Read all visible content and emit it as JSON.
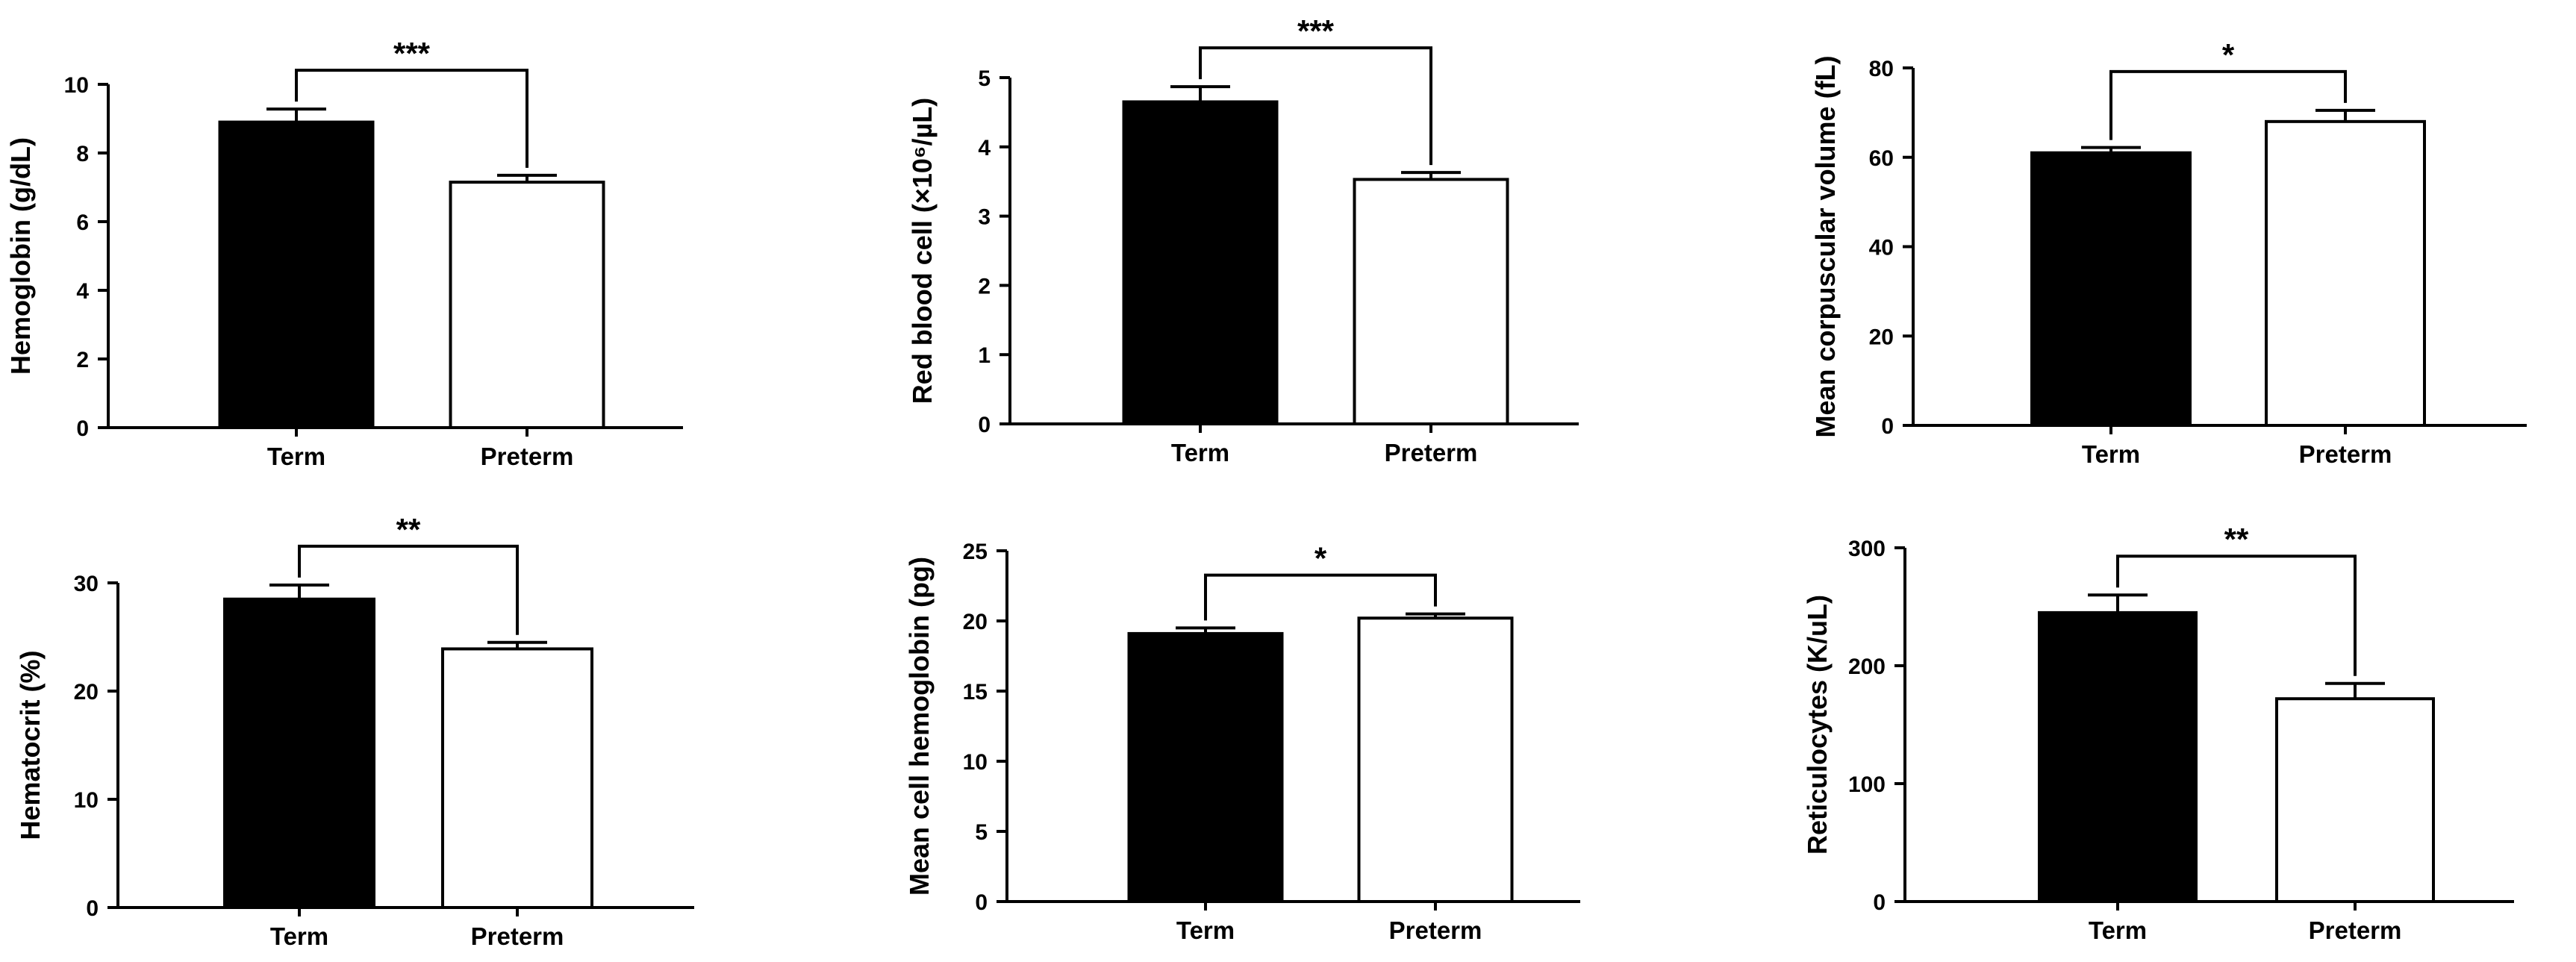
{
  "figure": {
    "colors": {
      "term": "#000000",
      "preterm": "#ffffff",
      "axis": "#000000"
    }
  },
  "chart_data": [
    {
      "type": "bar",
      "ylabel": "Hemoglobin (g/dL)",
      "categories": [
        "Term",
        "Preterm"
      ],
      "values": [
        8.9,
        7.15
      ],
      "errors": [
        0.38,
        0.2
      ],
      "ylim": [
        0,
        10
      ],
      "yticks": [
        0,
        2,
        4,
        6,
        8,
        10
      ],
      "significance": "***",
      "grid": false
    },
    {
      "type": "bar",
      "ylabel": "Red blood cell (×10⁶/µL)",
      "categories": [
        "Term",
        "Preterm"
      ],
      "values": [
        4.65,
        3.53
      ],
      "errors": [
        0.22,
        0.1
      ],
      "ylim": [
        0,
        5
      ],
      "yticks": [
        0,
        1,
        2,
        3,
        4,
        5
      ],
      "significance": "***",
      "grid": false
    },
    {
      "type": "bar",
      "ylabel": "Mean corpuscular volume (fL)",
      "categories": [
        "Term",
        "Preterm"
      ],
      "values": [
        61,
        68
      ],
      "errors": [
        1.2,
        2.5
      ],
      "ylim": [
        0,
        80
      ],
      "yticks": [
        0,
        20,
        40,
        60,
        80
      ],
      "significance": "*",
      "grid": false
    },
    {
      "type": "bar",
      "ylabel": "Hematocrit (%)",
      "categories": [
        "Term",
        "Preterm"
      ],
      "values": [
        28.5,
        23.9
      ],
      "errors": [
        1.3,
        0.6
      ],
      "ylim": [
        0,
        30
      ],
      "yticks": [
        0,
        10,
        20,
        30
      ],
      "significance": "**",
      "grid": false
    },
    {
      "type": "bar",
      "ylabel": "Mean cell hemoglobin (pg)",
      "categories": [
        "Term",
        "Preterm"
      ],
      "values": [
        19.1,
        20.2
      ],
      "errors": [
        0.4,
        0.3
      ],
      "ylim": [
        0,
        25
      ],
      "yticks": [
        0,
        5,
        10,
        15,
        20,
        25
      ],
      "significance": "*",
      "grid": false
    },
    {
      "type": "bar",
      "ylabel": "Reticulocytes (K/uL)",
      "categories": [
        "Term",
        "Preterm"
      ],
      "values": [
        245,
        172
      ],
      "errors": [
        15,
        13
      ],
      "ylim": [
        0,
        300
      ],
      "yticks": [
        0,
        100,
        200,
        300
      ],
      "significance": "**",
      "grid": false
    }
  ]
}
